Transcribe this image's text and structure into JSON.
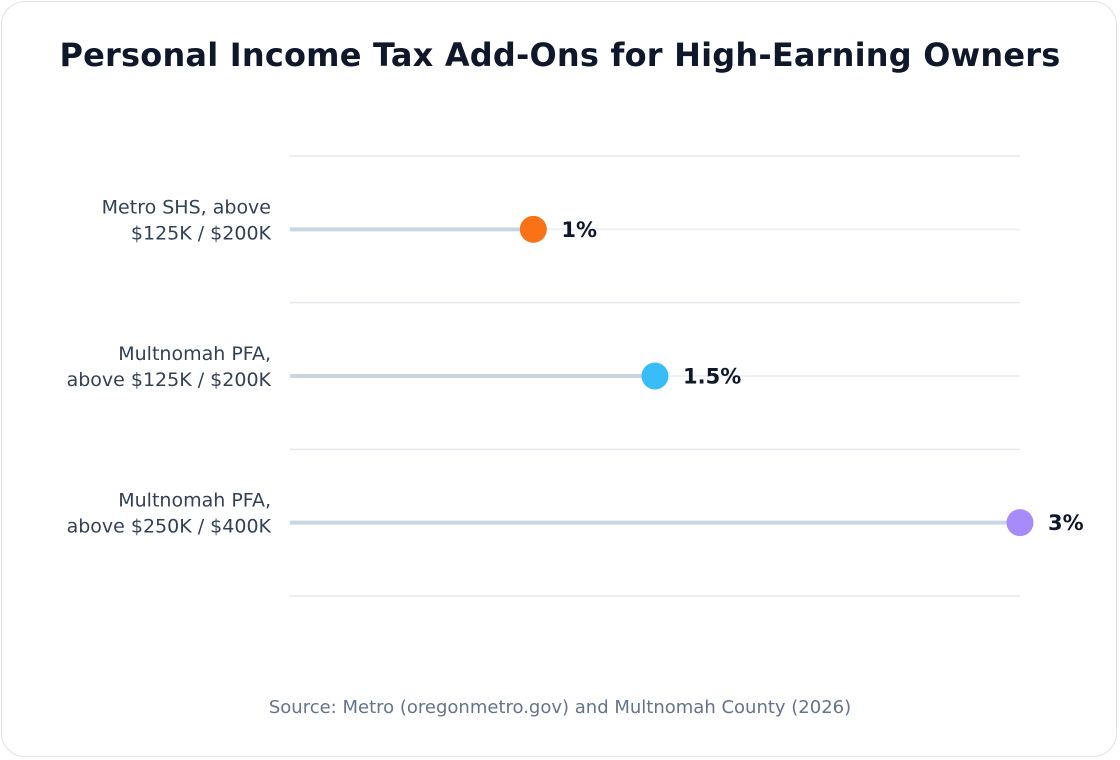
{
  "chart_data": {
    "type": "dot",
    "title": "Personal Income Tax Add-Ons for High-Earning Owners",
    "categories": [
      [
        "Metro SHS, above",
        "$125K / $200K"
      ],
      [
        "Multnomah PFA,",
        "above $125K / $200K"
      ],
      [
        "Multnomah PFA,",
        "above $250K / $400K"
      ]
    ],
    "values": [
      1,
      1.5,
      3
    ],
    "value_labels": [
      "1%",
      "1.5%",
      "3%"
    ],
    "colors": [
      "#f97316",
      "#38bdf8",
      "#a78bfa"
    ],
    "xlim": [
      0,
      3
    ],
    "grid": true,
    "source": "Source: Metro (oregonmetro.gov) and Multnomah County (2026)"
  }
}
